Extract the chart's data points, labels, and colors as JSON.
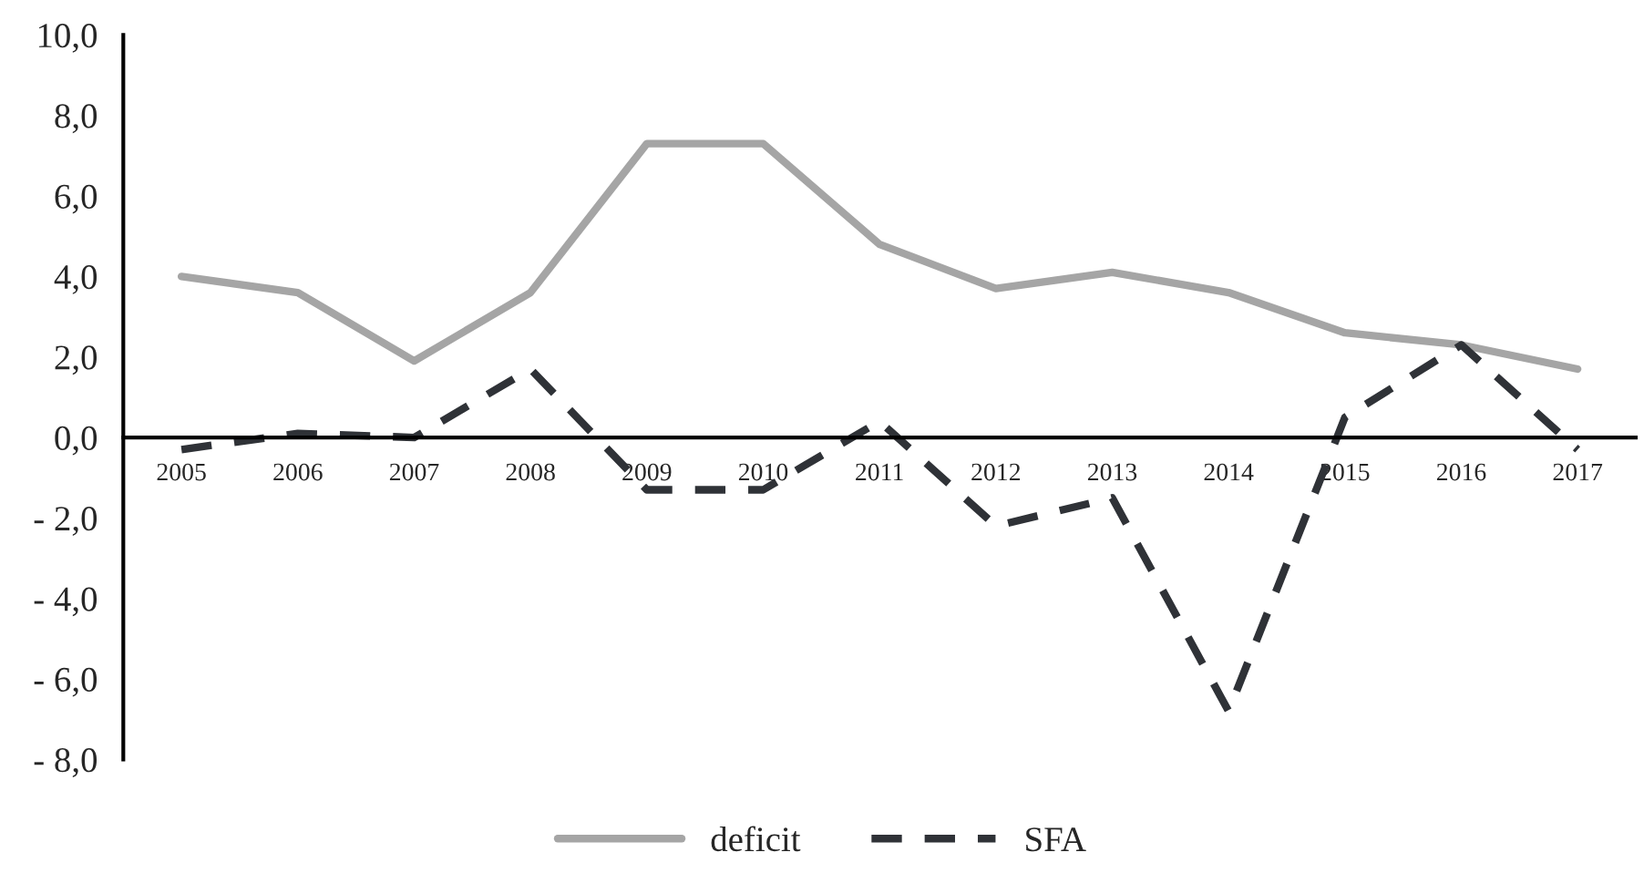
{
  "chart_data": {
    "type": "line",
    "categories": [
      "2005",
      "2006",
      "2007",
      "2008",
      "2009",
      "2010",
      "2011",
      "2012",
      "2013",
      "2014",
      "2015",
      "2016",
      "2017"
    ],
    "series": [
      {
        "name": "deficit",
        "color": "#a5a5a5",
        "line_style": "solid",
        "values": [
          4.0,
          3.6,
          1.9,
          3.6,
          7.3,
          7.3,
          4.8,
          3.7,
          4.1,
          3.6,
          2.6,
          2.3,
          1.7
        ]
      },
      {
        "name": "SFA",
        "color": "#2f3237",
        "line_style": "dashed",
        "values": [
          -0.3,
          0.1,
          0.0,
          1.7,
          -1.3,
          -1.3,
          0.4,
          -2.2,
          -1.5,
          -6.8,
          0.5,
          2.3,
          -0.3
        ]
      }
    ],
    "ylim": [
      -8,
      10
    ],
    "yticks": [
      {
        "value": -8,
        "label": "- 8,0"
      },
      {
        "value": -6,
        "label": "- 6,0"
      },
      {
        "value": -4,
        "label": "- 4,0"
      },
      {
        "value": -2,
        "label": "- 2,0"
      },
      {
        "value": 0,
        "label": "0,0"
      },
      {
        "value": 2,
        "label": "2,0"
      },
      {
        "value": 4,
        "label": "4,0"
      },
      {
        "value": 6,
        "label": "6,0"
      },
      {
        "value": 8,
        "label": "8,0"
      },
      {
        "value": 10,
        "label": "10,0"
      }
    ],
    "grid": false,
    "legend": "bottom",
    "marker": "none"
  }
}
